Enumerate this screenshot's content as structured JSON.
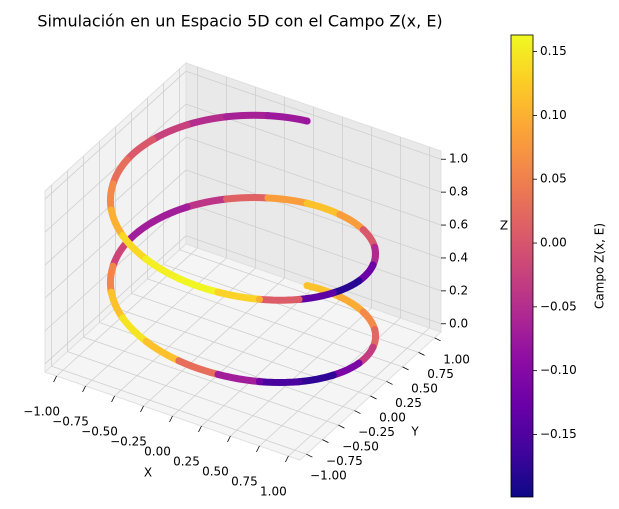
{
  "chart_data": {
    "type": "line3d",
    "title": "Simulación en un Espacio 5D con el Campo Z(x, E)",
    "xlabel": "X",
    "ylabel": "Y",
    "zlabel": "Z",
    "x": [
      0,
      0.31,
      0.59,
      0.81,
      0.95,
      1,
      0.95,
      0.81,
      0.59,
      0.31,
      0,
      -0.31,
      -0.59,
      -0.81,
      -0.95,
      -1,
      -0.95,
      -0.81,
      -0.59,
      -0.31,
      0,
      0.31,
      0.59,
      0.81,
      0.95,
      1,
      0.95,
      0.81,
      0.59,
      0.31,
      0,
      -0.31,
      -0.59,
      -0.81,
      -0.95,
      -1,
      -0.95,
      -0.81,
      -0.59,
      -0.31,
      0
    ],
    "y": [
      1,
      0.95,
      0.81,
      0.59,
      0.31,
      0,
      -0.31,
      -0.59,
      -0.81,
      -0.95,
      -1,
      -0.95,
      -0.81,
      -0.59,
      -0.31,
      0,
      0.31,
      0.59,
      0.81,
      0.95,
      1,
      0.95,
      0.81,
      0.59,
      0.31,
      0,
      -0.31,
      -0.59,
      -0.81,
      -0.95,
      -1,
      -0.95,
      -0.81,
      -0.59,
      -0.31,
      0,
      0.31,
      0.59,
      0.81,
      0.95,
      1
    ],
    "z": [
      0,
      0.025,
      0.05,
      0.075,
      0.1,
      0.125,
      0.15,
      0.175,
      0.2,
      0.225,
      0.25,
      0.275,
      0.3,
      0.325,
      0.35,
      0.375,
      0.4,
      0.425,
      0.45,
      0.475,
      0.5,
      0.525,
      0.55,
      0.575,
      0.6,
      0.625,
      0.65,
      0.675,
      0.7,
      0.725,
      0.75,
      0.775,
      0.8,
      0.825,
      0.85,
      0.875,
      0.9,
      0.925,
      0.95,
      0.975,
      1
    ],
    "c": [
      0.12,
      0.11,
      0.08,
      0.04,
      0.0,
      -0.06,
      -0.16,
      -0.19,
      -0.12,
      -0.02,
      0.08,
      0.15,
      0.14,
      0.09,
      0.02,
      -0.06,
      -0.08,
      -0.06,
      -0.02,
      0.05,
      0.11,
      0.12,
      0.04,
      -0.03,
      -0.08,
      -0.17,
      -0.19,
      -0.08,
      0.1,
      0.16,
      0.16,
      0.15,
      0.12,
      0.08,
      0.04,
      0.02,
      -0.01,
      -0.04,
      -0.06,
      -0.07,
      -0.08
    ],
    "colormap": "plasma",
    "xlim": [
      -1.1,
      1.1
    ],
    "ylim": [
      -1.1,
      1.1
    ],
    "zlim": [
      -0.05,
      1.05
    ],
    "xticks": [
      {
        "value": -1,
        "label": "−1.00"
      },
      {
        "value": -0.75,
        "label": "−0.75"
      },
      {
        "value": -0.5,
        "label": "−0.50"
      },
      {
        "value": -0.25,
        "label": "−0.25"
      },
      {
        "value": 0,
        "label": "0.00"
      },
      {
        "value": 0.25,
        "label": "0.25"
      },
      {
        "value": 0.5,
        "label": "0.50"
      },
      {
        "value": 0.75,
        "label": "0.75"
      },
      {
        "value": 1,
        "label": "1.00"
      }
    ],
    "yticks": [
      {
        "value": -1,
        "label": "−1.00"
      },
      {
        "value": -0.75,
        "label": "−0.75"
      },
      {
        "value": -0.5,
        "label": "−0.50"
      },
      {
        "value": -0.25,
        "label": "−0.25"
      },
      {
        "value": 0,
        "label": "0.00"
      },
      {
        "value": 0.25,
        "label": "0.25"
      },
      {
        "value": 0.5,
        "label": "0.50"
      },
      {
        "value": 0.75,
        "label": "0.75"
      },
      {
        "value": 1,
        "label": "1.00"
      }
    ],
    "zticks": [
      {
        "value": 0,
        "label": "0.0"
      },
      {
        "value": 0.2,
        "label": "0.2"
      },
      {
        "value": 0.4,
        "label": "0.4"
      },
      {
        "value": 0.6,
        "label": "0.6"
      },
      {
        "value": 0.8,
        "label": "0.8"
      },
      {
        "value": 1,
        "label": "1.0"
      }
    ],
    "grid": true,
    "colorbar": {
      "label": "Campo Z(x, E)",
      "lim": [
        -0.199,
        0.163
      ],
      "ticks": [
        {
          "value": -0.15,
          "label": "−0.15"
        },
        {
          "value": -0.1,
          "label": "−0.10"
        },
        {
          "value": -0.05,
          "label": "−0.05"
        },
        {
          "value": 0,
          "label": "0.00"
        },
        {
          "value": 0.05,
          "label": "0.05"
        },
        {
          "value": 0.1,
          "label": "0.10"
        },
        {
          "value": 0.15,
          "label": "0.15"
        }
      ]
    }
  }
}
